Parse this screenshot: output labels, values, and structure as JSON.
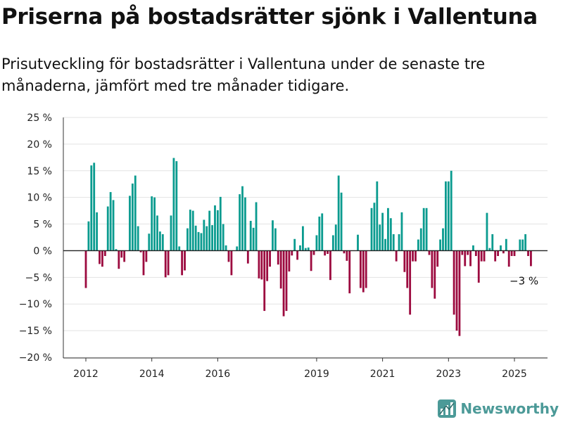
{
  "header": {
    "title": "Priserna på bostadsrätter sjönk i Vallentuna",
    "subtitle": "Prisutveckling för bostadsrätter i Vallentuna under de senaste tre månaderna, jämfört med tre månader tidigare."
  },
  "brand": {
    "name": "Newsworthy",
    "icon": "bar-chart-logo-icon"
  },
  "colors": {
    "positive": "#0a9b8f",
    "negative": "#9c0a3f",
    "grid": "#e3e3e3",
    "zero_line": "#222222",
    "axis": "#333333"
  },
  "chart_data": {
    "type": "bar",
    "title": "Priserna på bostadsrätter sjönk i Vallentuna",
    "subtitle": "Prisutveckling för bostadsrätter i Vallentuna under de senaste tre månaderna, jämfört med tre månader tidigare.",
    "xlabel": "",
    "ylabel": "",
    "grid": true,
    "ylim": [
      -20,
      25
    ],
    "yticks": [
      25,
      20,
      15,
      10,
      5,
      0,
      -5,
      -10,
      -15,
      -20
    ],
    "ytick_labels": [
      "25 %",
      "20 %",
      "15 %",
      "10 %",
      "5 %",
      "0 %",
      "−5 %",
      "−10 %",
      "−15 %",
      "−20 %"
    ],
    "x_start": "2012-01",
    "x_end": "2025-12",
    "x_ticks": [
      "2012",
      "2014",
      "2016",
      "2019",
      "2021",
      "2023",
      "2025"
    ],
    "annotation": "−3 %",
    "categories": [
      "2012-01",
      "2012-02",
      "2012-03",
      "2012-04",
      "2012-05",
      "2012-06",
      "2012-07",
      "2012-08",
      "2012-09",
      "2012-10",
      "2012-11",
      "2012-12",
      "2013-01",
      "2013-02",
      "2013-03",
      "2013-04",
      "2013-05",
      "2013-06",
      "2013-07",
      "2013-08",
      "2013-09",
      "2013-10",
      "2013-11",
      "2013-12",
      "2014-01",
      "2014-02",
      "2014-03",
      "2014-04",
      "2014-05",
      "2014-06",
      "2014-07",
      "2014-08",
      "2014-09",
      "2014-10",
      "2014-11",
      "2014-12",
      "2015-01",
      "2015-02",
      "2015-03",
      "2015-04",
      "2015-05",
      "2015-06",
      "2015-07",
      "2015-08",
      "2015-09",
      "2015-10",
      "2015-11",
      "2015-12",
      "2016-01",
      "2016-02",
      "2016-03",
      "2016-04",
      "2016-05",
      "2016-06",
      "2016-07",
      "2016-08",
      "2016-09",
      "2016-10",
      "2016-11",
      "2016-12",
      "2017-01",
      "2017-02",
      "2017-03",
      "2017-04",
      "2017-05",
      "2017-06",
      "2017-07",
      "2017-08",
      "2017-09",
      "2017-10",
      "2017-11",
      "2017-12",
      "2018-01",
      "2018-02",
      "2018-03",
      "2018-04",
      "2018-05",
      "2018-06",
      "2018-07",
      "2018-08",
      "2018-09",
      "2018-10",
      "2018-11",
      "2018-12",
      "2019-01",
      "2019-02",
      "2019-03",
      "2019-04",
      "2019-05",
      "2019-06",
      "2019-07",
      "2019-08",
      "2019-09",
      "2019-10",
      "2019-11",
      "2019-12",
      "2020-01",
      "2020-02",
      "2020-03",
      "2020-04",
      "2020-05",
      "2020-06",
      "2020-07",
      "2020-08",
      "2020-09",
      "2020-10",
      "2020-11",
      "2020-12",
      "2021-01",
      "2021-02",
      "2021-03",
      "2021-04",
      "2021-05",
      "2021-06",
      "2021-07",
      "2021-08",
      "2021-09",
      "2021-10",
      "2021-11",
      "2021-12",
      "2022-01",
      "2022-02",
      "2022-03",
      "2022-04",
      "2022-05",
      "2022-06",
      "2022-07",
      "2022-08",
      "2022-09",
      "2022-10",
      "2022-11",
      "2022-12",
      "2023-01",
      "2023-02",
      "2023-03",
      "2023-04",
      "2023-05",
      "2023-06",
      "2023-07",
      "2023-08",
      "2023-09",
      "2023-10",
      "2023-11",
      "2023-12",
      "2024-01",
      "2024-02",
      "2024-03",
      "2024-04",
      "2024-05",
      "2024-06",
      "2024-07",
      "2024-08",
      "2024-09",
      "2024-10",
      "2024-11",
      "2024-12",
      "2025-01",
      "2025-02",
      "2025-03",
      "2025-04",
      "2025-05",
      "2025-06",
      "2025-07",
      "2025-08",
      "2025-09",
      "2025-10",
      "2025-11",
      "2025-12"
    ],
    "values": [
      -7,
      5.5,
      16,
      16.5,
      7.2,
      -2.5,
      -3,
      -1,
      8.3,
      11,
      9.5,
      0.3,
      -3.4,
      -1.3,
      -2.1,
      null,
      10.3,
      12.6,
      14.1,
      4.6,
      -0.3,
      -4.6,
      -2.1,
      3.2,
      10.2,
      10,
      6.6,
      3.6,
      3.1,
      -5,
      -4.6,
      6.6,
      17.4,
      16.8,
      0.8,
      -4.6,
      -3.7,
      4.2,
      7.7,
      7.5,
      4.7,
      3.5,
      3.3,
      5.8,
      4.6,
      7.5,
      4.8,
      8.5,
      7.6,
      10.1,
      5,
      1,
      -2.1,
      -4.6,
      null,
      0.8,
      10.6,
      12.1,
      10,
      -2.4,
      5.6,
      4.3,
      9.1,
      -5.2,
      -5.4,
      -11.3,
      -5.7,
      -3,
      5.7,
      4.2,
      -2.6,
      -7.1,
      -12.3,
      -11.3,
      -3.9,
      -0.9,
      2.2,
      -1.7,
      1,
      4.6,
      0.5,
      0.6,
      -3.8,
      -0.8,
      2.9,
      6.4,
      7,
      -0.9,
      -0.6,
      -5.5,
      2.9,
      4.9,
      14.1,
      10.9,
      -0.5,
      -1.9,
      -8,
      null,
      null,
      3,
      -7,
      -7.8,
      -7,
      null,
      8,
      9,
      13,
      4.9,
      7.1,
      2.2,
      8,
      6.1,
      3.1,
      -2,
      3.1,
      7.2,
      -4,
      -7,
      -12,
      -2,
      -2,
      2.1,
      4.2,
      8,
      8,
      -0.8,
      -7,
      -9,
      -3,
      2.1,
      4.2,
      13,
      13,
      15,
      -12,
      -15,
      -16,
      -0.8,
      -2.9,
      -0.8,
      -2.9,
      1,
      -1,
      -6,
      -2,
      -2,
      7.1,
      0.5,
      3.1,
      -2,
      -1,
      1,
      -0.5,
      2.2,
      -3,
      -1,
      -1,
      null,
      2.1,
      2.1,
      3.1,
      -1,
      -2.9,
      null,
      null,
      null,
      null,
      null
    ]
  }
}
